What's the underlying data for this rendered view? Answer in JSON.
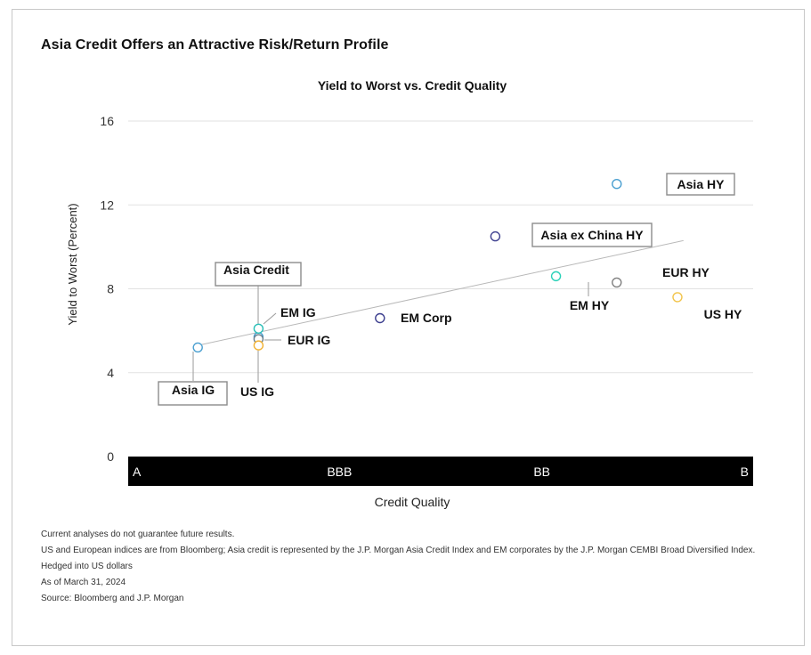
{
  "headline": "Asia Credit Offers an Attractive Risk/Return Profile",
  "chart_data": {
    "type": "scatter",
    "title": "Yield to Worst vs. Credit Quality",
    "xlabel": "Credit Quality",
    "ylabel": "Yield to Worst (Percent)",
    "ylim": [
      0,
      16
    ],
    "yticks": [
      0,
      4,
      8,
      12,
      16
    ],
    "xlim": [
      0,
      3
    ],
    "xticks": [
      {
        "label": "A",
        "value": 0
      },
      {
        "label": "BBB",
        "value": 1
      },
      {
        "label": "BB",
        "value": 2
      },
      {
        "label": "B",
        "value": 3
      }
    ],
    "grid": true,
    "trendline": {
      "x": [
        0.3,
        2.7
      ],
      "y": [
        5.3,
        10.3
      ]
    },
    "points": [
      {
        "label": "Asia IG",
        "x": 0.3,
        "y": 5.2,
        "color": "#4a9fd0",
        "boxed": true
      },
      {
        "label": "Asia Credit",
        "x": 0.6,
        "y": 5.7,
        "color": "#4a9fd0",
        "boxed": true
      },
      {
        "label": "EM IG",
        "x": 0.6,
        "y": 6.1,
        "color": "#2bbfb7",
        "boxed": false
      },
      {
        "label": "EUR IG",
        "x": 0.6,
        "y": 5.6,
        "color": "#6e7f8c",
        "boxed": false
      },
      {
        "label": "US IG",
        "x": 0.6,
        "y": 5.3,
        "color": "#f2b233",
        "boxed": false
      },
      {
        "label": "EM Corp",
        "x": 1.2,
        "y": 6.6,
        "color": "#3d3f8f",
        "boxed": false
      },
      {
        "label": "Asia ex China HY",
        "x": 1.77,
        "y": 10.5,
        "color": "#3d3f8f",
        "boxed": true
      },
      {
        "label": "EM HY",
        "x": 2.07,
        "y": 8.6,
        "color": "#2bd1b8",
        "boxed": false
      },
      {
        "label": "Asia HY",
        "x": 2.37,
        "y": 13.0,
        "color": "#4a9fd0",
        "boxed": true
      },
      {
        "label": "EUR HY",
        "x": 2.37,
        "y": 8.3,
        "color": "#808080",
        "boxed": false
      },
      {
        "label": "US HY",
        "x": 2.67,
        "y": 7.6,
        "color": "#f2c44a",
        "boxed": false
      }
    ]
  },
  "notes": [
    "Current analyses do not guarantee future results.",
    "US and European indices are from Bloomberg; Asia credit is represented by the J.P. Morgan Asia Credit Index and EM corporates by the J.P. Morgan CEMBI Broad Diversified Index. Hedged into US dollars",
    "As of March 31, 2024",
    "Source: Bloomberg and J.P. Morgan"
  ]
}
